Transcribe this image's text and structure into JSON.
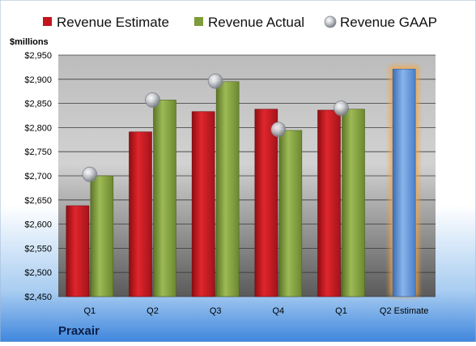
{
  "chart_data": {
    "type": "bar",
    "categories": [
      "Q1",
      "Q2",
      "Q3",
      "Q4",
      "Q1",
      "Q2 Estimate"
    ],
    "series": [
      {
        "name": "Revenue Estimate",
        "values": [
          2638,
          2791,
          2833,
          2838,
          2836,
          null
        ]
      },
      {
        "name": "Revenue Actual",
        "values": [
          2700,
          2857,
          2895,
          2794,
          2838,
          null
        ]
      },
      {
        "name": "Revenue GAAP",
        "values": [
          2703,
          2857,
          2896,
          2796,
          2840,
          null
        ]
      },
      {
        "name": "Q2 Estimate",
        "values": [
          null,
          null,
          null,
          null,
          null,
          2921
        ]
      }
    ],
    "ylabel": "$millions",
    "ylim": [
      2450,
      2950
    ],
    "yticks": [
      "$2,450",
      "$2,500",
      "$2,550",
      "$2,600",
      "$2,650",
      "$2,700",
      "$2,750",
      "$2,800",
      "$2,850",
      "$2,900",
      "$2,950"
    ],
    "ytick_values": [
      2450,
      2500,
      2550,
      2600,
      2650,
      2700,
      2750,
      2800,
      2850,
      2900,
      2950
    ],
    "grid": true,
    "legend_position": "top",
    "company": "Praxair",
    "colors": {
      "estimate": "#c4151c",
      "actual": "#7e9c3b",
      "gaap": "#b8bcc4",
      "forecast": "#5b8fd6",
      "forecast_glow": "#f7a541"
    }
  }
}
